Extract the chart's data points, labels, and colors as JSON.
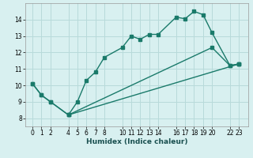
{
  "xlabel": "Humidex (Indice chaleur)",
  "bg_color": "#d8f0f0",
  "grid_color": "#b8dada",
  "line_color": "#1a7a6a",
  "xlim": [
    -0.8,
    24.0
  ],
  "ylim": [
    7.5,
    15.0
  ],
  "xticks": [
    0,
    1,
    2,
    4,
    5,
    6,
    7,
    8,
    10,
    11,
    12,
    13,
    14,
    16,
    17,
    18,
    19,
    20,
    22,
    23
  ],
  "yticks": [
    8,
    9,
    10,
    11,
    12,
    13,
    14
  ],
  "line1_x": [
    0,
    1,
    2,
    4,
    5,
    6,
    7,
    8,
    10,
    11,
    12,
    13,
    14,
    16,
    17,
    18,
    19,
    20,
    22,
    23
  ],
  "line1_y": [
    10.1,
    9.4,
    9.0,
    8.2,
    9.0,
    10.3,
    10.8,
    11.7,
    12.3,
    13.0,
    12.8,
    13.1,
    13.1,
    14.15,
    14.05,
    14.5,
    14.3,
    13.2,
    11.2,
    11.3
  ],
  "line2_x": [
    0,
    1,
    2,
    4,
    20,
    22,
    23
  ],
  "line2_y": [
    10.1,
    9.4,
    9.0,
    8.2,
    12.3,
    11.2,
    11.3
  ],
  "line3_x": [
    4,
    23
  ],
  "line3_y": [
    8.2,
    11.3
  ]
}
